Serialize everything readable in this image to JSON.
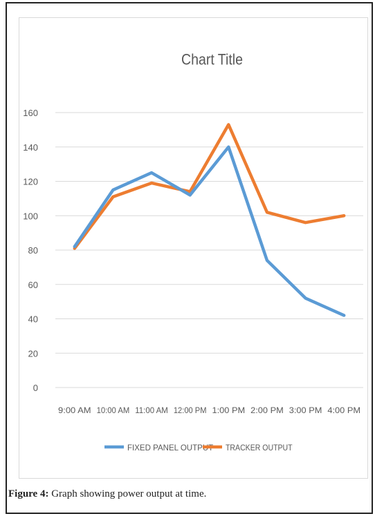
{
  "chart_data": {
    "type": "line",
    "title": "Chart Title",
    "categories": [
      "9:00 AM",
      "10:00 AM",
      "11:00 AM",
      "12:00 PM",
      "1:00 PM",
      "2:00 PM",
      "3:00 PM",
      "4:00 PM"
    ],
    "series": [
      {
        "name": "FIXED PANEL OUTPUT",
        "color": "#5b9bd5",
        "values": [
          82,
          115,
          125,
          112,
          140,
          74,
          52,
          42
        ]
      },
      {
        "name": "TRACKER OUTPUT",
        "color": "#ed7d31",
        "values": [
          81,
          111,
          119,
          114,
          153,
          102,
          96,
          100
        ]
      }
    ],
    "ylim": [
      0,
      160
    ],
    "yticks": [
      "0",
      "20",
      "40",
      "60",
      "80",
      "100",
      "120",
      "140",
      "160"
    ],
    "grid": true,
    "legend": "bottom"
  },
  "caption": {
    "label": "Figure 4:",
    "text": " Graph showing power output at time."
  }
}
